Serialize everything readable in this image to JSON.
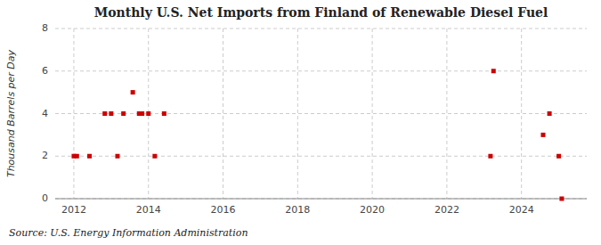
{
  "chart_data": {
    "type": "scatter",
    "title": "Monthly U.S. Net Imports from Finland of Renewable Diesel Fuel",
    "ylabel": "Thousand Barrels per Day",
    "annotations": [
      "Source: U.S. Energy Information Administration"
    ],
    "x": [
      2012.0,
      2012.08,
      2012.42,
      2012.83,
      2013.0,
      2013.17,
      2013.33,
      2013.58,
      2013.75,
      2013.83,
      2014.0,
      2014.17,
      2014.42,
      2023.17,
      2023.25,
      2024.58,
      2024.75,
      2025.0,
      2025.08
    ],
    "values": [
      2,
      2,
      2,
      4,
      4,
      2,
      4,
      5,
      4,
      4,
      4,
      2,
      4,
      2,
      6,
      3,
      4,
      2,
      0
    ],
    "color": "#cc0000",
    "marker": "square",
    "xlim": [
      2011.5,
      2025.75
    ],
    "ylim": [
      0,
      8
    ],
    "xticks": [
      2012,
      2014,
      2016,
      2018,
      2020,
      2022,
      2024
    ],
    "yticks": [
      0,
      2,
      4,
      6,
      8
    ],
    "grid": true
  }
}
